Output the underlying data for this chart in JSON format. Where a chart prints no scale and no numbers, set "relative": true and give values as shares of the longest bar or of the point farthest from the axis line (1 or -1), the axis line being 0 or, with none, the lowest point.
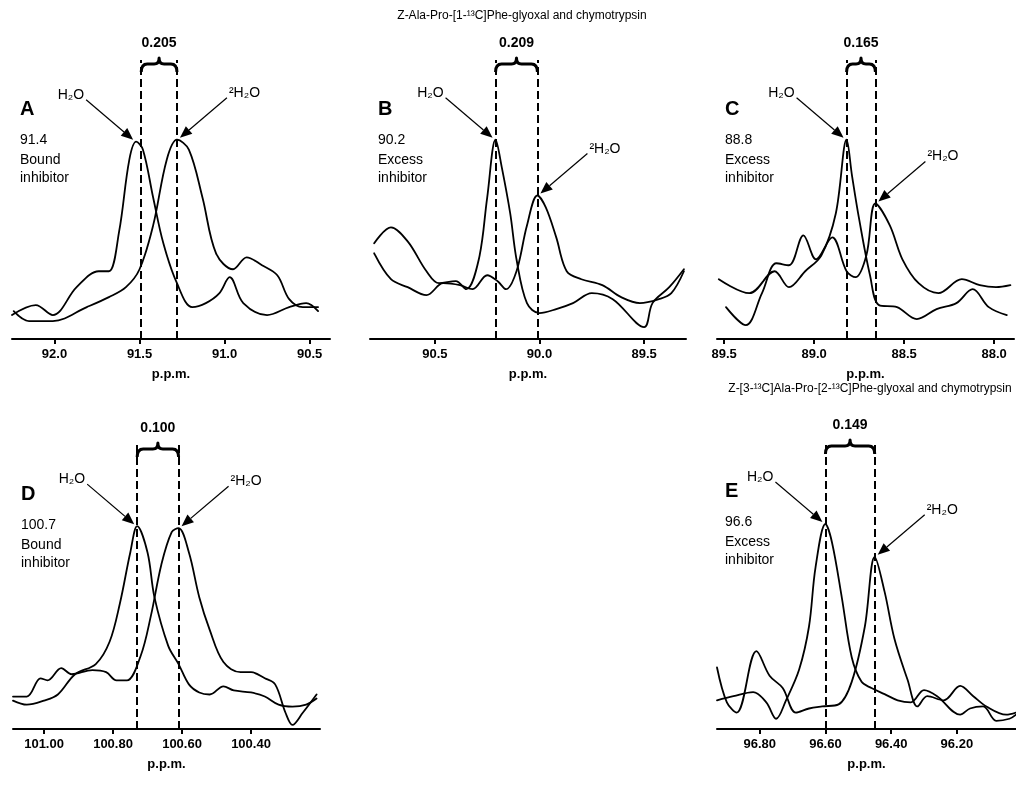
{
  "chart_data": [
    {
      "type": "line",
      "relative": true,
      "xlabel": "p.p.m.",
      "tick_labels": "x",
      "xlim": [
        92.25,
        90.38
      ],
      "xticks": [
        {
          "value": 92,
          "label": "92.0"
        },
        91.5,
        {
          "value": 91,
          "label": "91.0"
        },
        90.5
      ],
      "annotations": [
        "A",
        "91.4",
        "Bound inhibitor",
        "0.205",
        "H₂O",
        "²H₂O"
      ],
      "ref_lines": [
        {
          "axis": "x",
          "value": 91.49,
          "line_style": "dashed",
          "color": "#000000"
        },
        {
          "axis": "x",
          "value": 91.28,
          "line_style": "dashed",
          "color": "#000000"
        }
      ],
      "series": [
        {
          "color": "#000000",
          "x": [
            92.25,
            92.11,
            92.01,
            91.87,
            91.74,
            91.68,
            91.62,
            91.56,
            91.52,
            91.48,
            91.42,
            91.36,
            91.28,
            91.19,
            91.11,
            91.03,
            90.97,
            90.89,
            90.75,
            90.62,
            90.52,
            90.45
          ],
          "values": [
            0.12,
            0.17,
            0.12,
            0.26,
            0.34,
            0.34,
            0.54,
            0.9,
            0.99,
            0.95,
            0.71,
            0.48,
            0.28,
            0.16,
            0.18,
            0.23,
            0.31,
            0.18,
            0.12,
            0.16,
            0.18,
            0.14
          ]
        },
        {
          "color": "#000000",
          "x": [
            92.24,
            92.15,
            92.01,
            91.81,
            91.68,
            91.58,
            91.5,
            91.42,
            91.34,
            91.28,
            91.21,
            91.13,
            91.05,
            90.95,
            90.87,
            90.78,
            90.69,
            90.62,
            90.54,
            90.45
          ],
          "values": [
            0.14,
            0.09,
            0.09,
            0.16,
            0.21,
            0.26,
            0.35,
            0.57,
            0.9,
            1.0,
            0.95,
            0.71,
            0.43,
            0.35,
            0.41,
            0.37,
            0.32,
            0.2,
            0.16,
            0.16
          ]
        }
      ]
    },
    {
      "type": "line",
      "relative": true,
      "title": "Z-Ala-Pro-[1-¹³C]Phe-glyoxal and chymotrypsin",
      "xlabel": "p.p.m.",
      "tick_labels": "x",
      "xlim": [
        90.81,
        89.3
      ],
      "xticks": [
        90.5,
        {
          "value": 90,
          "label": "90.0"
        },
        89.5
      ],
      "annotations": [
        "B",
        "90.2",
        "Excess inhibitor",
        "0.209",
        "H₂O",
        "²H₂O"
      ],
      "ref_lines": [
        {
          "axis": "x",
          "value": 90.21,
          "line_style": "dashed",
          "color": "#000000"
        },
        {
          "axis": "x",
          "value": 90.01,
          "line_style": "dashed",
          "color": "#000000"
        }
      ],
      "series": [
        {
          "color": "#000000",
          "x": [
            90.79,
            90.71,
            90.63,
            90.54,
            90.48,
            90.4,
            90.35,
            90.29,
            90.25,
            90.21,
            90.18,
            90.14,
            90.11,
            90.06,
            90.0,
            89.92,
            89.84,
            89.75,
            89.65,
            89.5,
            89.46,
            89.38,
            89.31
          ],
          "values": [
            0.48,
            0.56,
            0.49,
            0.34,
            0.28,
            0.29,
            0.25,
            0.4,
            0.71,
            1.0,
            0.86,
            0.63,
            0.4,
            0.18,
            0.13,
            0.15,
            0.18,
            0.23,
            0.2,
            0.06,
            0.18,
            0.26,
            0.35
          ]
        },
        {
          "color": "#000000",
          "x": [
            90.79,
            90.71,
            90.63,
            90.54,
            90.46,
            90.38,
            90.32,
            90.25,
            90.2,
            90.16,
            90.11,
            90.06,
            90.01,
            89.97,
            89.92,
            89.87,
            89.8,
            89.7,
            89.61,
            89.52,
            89.43,
            89.37,
            89.31
          ],
          "values": [
            0.43,
            0.3,
            0.26,
            0.22,
            0.28,
            0.27,
            0.25,
            0.32,
            0.29,
            0.25,
            0.34,
            0.57,
            0.72,
            0.66,
            0.51,
            0.34,
            0.3,
            0.27,
            0.21,
            0.18,
            0.2,
            0.23,
            0.34
          ]
        }
      ]
    },
    {
      "type": "line",
      "relative": true,
      "xlabel": "p.p.m.",
      "tick_labels": "x",
      "xlim": [
        89.54,
        87.89
      ],
      "xticks": [
        89.5,
        {
          "value": 89,
          "label": "89.0"
        },
        88.5,
        {
          "value": 88,
          "label": "88.0"
        }
      ],
      "annotations": [
        "C",
        "88.8",
        "Excess inhibitor",
        "0.165",
        "H₂O",
        "²H₂O"
      ],
      "ref_lines": [
        {
          "axis": "x",
          "value": 88.82,
          "line_style": "dashed",
          "color": "#000000"
        },
        {
          "axis": "x",
          "value": 88.66,
          "line_style": "dashed",
          "color": "#000000"
        }
      ],
      "series": [
        {
          "color": "#000000",
          "x": [
            89.53,
            89.36,
            89.22,
            89.14,
            89.05,
            88.96,
            88.88,
            88.82,
            88.79,
            88.75,
            88.69,
            88.64,
            88.54,
            88.43,
            88.32,
            88.21,
            88.12,
            88.03,
            87.93
          ],
          "values": [
            0.3,
            0.23,
            0.34,
            0.26,
            0.34,
            0.42,
            0.63,
            1.0,
            0.82,
            0.6,
            0.32,
            0.17,
            0.16,
            0.1,
            0.15,
            0.18,
            0.25,
            0.16,
            0.12
          ]
        },
        {
          "color": "#000000",
          "x": [
            89.49,
            89.38,
            89.29,
            89.21,
            89.14,
            89.06,
            88.99,
            88.9,
            88.82,
            88.77,
            88.71,
            88.66,
            88.58,
            88.51,
            88.42,
            88.31,
            88.18,
            88.08,
            87.99,
            87.91
          ],
          "values": [
            0.16,
            0.07,
            0.23,
            0.38,
            0.37,
            0.52,
            0.4,
            0.51,
            0.34,
            0.31,
            0.42,
            0.68,
            0.57,
            0.4,
            0.28,
            0.23,
            0.3,
            0.27,
            0.26,
            0.27
          ]
        }
      ]
    },
    {
      "type": "line",
      "relative": true,
      "xlabel": "p.p.m.",
      "tick_labels": "x",
      "xlim": [
        101.09,
        100.2
      ],
      "xticks": [
        {
          "value": 101,
          "label": "101.00"
        },
        {
          "value": 100.8,
          "label": "100.80"
        },
        {
          "value": 100.6,
          "label": "100.60"
        },
        {
          "value": 100.4,
          "label": "100.40"
        }
      ],
      "annotations": [
        "D",
        "100.7",
        "Bound inhibitor",
        "0.100",
        "H₂O",
        "²H₂O"
      ],
      "ref_lines": [
        {
          "axis": "x",
          "value": 100.73,
          "line_style": "dashed",
          "color": "#000000"
        },
        {
          "axis": "x",
          "value": 100.61,
          "line_style": "dashed",
          "color": "#000000"
        }
      ],
      "series": [
        {
          "color": "#000000",
          "x": [
            101.09,
            101.05,
            101.0,
            100.96,
            100.91,
            100.85,
            100.81,
            100.78,
            100.75,
            100.73,
            100.7,
            100.68,
            100.64,
            100.61,
            100.58,
            100.55,
            100.52,
            100.48,
            100.45,
            100.4,
            100.36,
            100.32,
            100.28,
            100.24,
            100.21
          ],
          "values": [
            0.14,
            0.12,
            0.14,
            0.17,
            0.27,
            0.32,
            0.43,
            0.62,
            0.87,
            1.0,
            0.87,
            0.65,
            0.41,
            0.32,
            0.22,
            0.18,
            0.17,
            0.21,
            0.19,
            0.18,
            0.16,
            0.12,
            0.11,
            0.12,
            0.15
          ]
        },
        {
          "color": "#000000",
          "x": [
            101.09,
            101.05,
            101.01,
            100.99,
            100.95,
            100.92,
            100.86,
            100.82,
            100.79,
            100.76,
            100.72,
            100.69,
            100.66,
            100.63,
            100.61,
            100.58,
            100.55,
            100.52,
            100.48,
            100.43,
            100.4,
            100.36,
            100.33,
            100.3,
            100.28,
            100.25,
            100.21
          ],
          "values": [
            0.16,
            0.16,
            0.25,
            0.24,
            0.3,
            0.27,
            0.29,
            0.28,
            0.24,
            0.24,
            0.36,
            0.56,
            0.81,
            0.97,
            0.99,
            0.87,
            0.65,
            0.49,
            0.33,
            0.28,
            0.28,
            0.25,
            0.22,
            0.08,
            0.02,
            0.08,
            0.17
          ]
        }
      ]
    },
    {
      "type": "line",
      "relative": true,
      "title": "Z-[3-¹³C]Ala-Pro-[2-¹³C]Phe-glyoxal and chymotrypsin",
      "xlabel": "p.p.m.",
      "tick_labels": "x",
      "xlim": [
        96.93,
        96.02
      ],
      "xticks": [
        {
          "value": 96.8,
          "label": "96.80"
        },
        {
          "value": 96.6,
          "label": "96.60"
        },
        {
          "value": 96.4,
          "label": "96.40"
        },
        {
          "value": 96.2,
          "label": "96.20"
        }
      ],
      "annotations": [
        "E",
        "96.6",
        "Excess inhibitor",
        "0.149",
        "H₂O",
        "²H₂O"
      ],
      "ref_lines": [
        {
          "axis": "x",
          "value": 96.6,
          "line_style": "dashed",
          "color": "#000000"
        },
        {
          "axis": "x",
          "value": 96.45,
          "line_style": "dashed",
          "color": "#000000"
        }
      ],
      "series": [
        {
          "color": "#000000",
          "x": [
            96.93,
            96.88,
            96.82,
            96.78,
            96.75,
            96.72,
            96.68,
            96.65,
            96.63,
            96.6,
            96.58,
            96.55,
            96.52,
            96.49,
            96.46,
            96.42,
            96.38,
            96.34,
            96.3,
            96.26,
            96.19,
            96.16,
            96.12,
            96.08,
            96.04,
            96.02
          ],
          "values": [
            0.14,
            0.16,
            0.18,
            0.13,
            0.05,
            0.14,
            0.29,
            0.5,
            0.79,
            1.0,
            0.91,
            0.64,
            0.35,
            0.23,
            0.2,
            0.17,
            0.14,
            0.13,
            0.19,
            0.16,
            0.07,
            0.1,
            0.11,
            0.04,
            0.05,
            0.07
          ]
        },
        {
          "color": "#000000",
          "x": [
            96.93,
            96.9,
            96.87,
            96.81,
            96.77,
            96.73,
            96.69,
            96.65,
            96.61,
            96.56,
            96.52,
            96.48,
            96.45,
            96.42,
            96.39,
            96.35,
            96.32,
            96.29,
            96.24,
            96.19,
            96.15,
            96.11,
            96.05,
            96.02
          ],
          "values": [
            0.3,
            0.13,
            0.08,
            0.38,
            0.26,
            0.2,
            0.08,
            0.1,
            0.11,
            0.12,
            0.23,
            0.5,
            0.84,
            0.67,
            0.44,
            0.24,
            0.11,
            0.16,
            0.14,
            0.21,
            0.16,
            0.11,
            0.07,
            0.08
          ]
        }
      ]
    }
  ]
}
